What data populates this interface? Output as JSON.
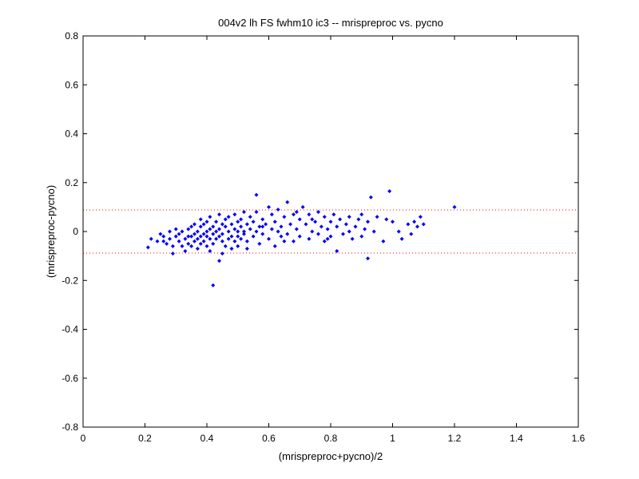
{
  "chart_data": {
    "type": "scatter",
    "title": "004v2 lh FS fwhm10 ic3 -- mrispreproc vs. pycno",
    "xlabel": "(mrispreproc+pycno)/2",
    "ylabel": "(mrispreproc-pycno)",
    "xlim": [
      0,
      1.6
    ],
    "ylim": [
      -0.8,
      0.8
    ],
    "xticks": [
      "0",
      "0.2",
      "0.4",
      "0.6",
      "0.8",
      "1",
      "1.2",
      "1.4",
      "1.6"
    ],
    "yticks": [
      "-0.8",
      "-0.6",
      "-0.4",
      "-0.2",
      "0",
      "0.2",
      "0.4",
      "0.6",
      "0.8"
    ],
    "grid": false,
    "colors": {
      "points": "#0000ff",
      "limit_lines": "#ff0000"
    },
    "reference_lines": [
      0.088,
      -0.088
    ],
    "series": [
      {
        "points": [
          [
            0.21,
            -0.065
          ],
          [
            0.22,
            -0.03
          ],
          [
            0.24,
            -0.04
          ],
          [
            0.25,
            -0.01
          ],
          [
            0.26,
            -0.02
          ],
          [
            0.27,
            -0.05
          ],
          [
            0.28,
            -0.03
          ],
          [
            0.28,
            0.0
          ],
          [
            0.29,
            -0.06
          ],
          [
            0.29,
            -0.09
          ],
          [
            0.3,
            0.01
          ],
          [
            0.3,
            -0.02
          ],
          [
            0.31,
            -0.04
          ],
          [
            0.31,
            -0.01
          ],
          [
            0.32,
            -0.06
          ],
          [
            0.32,
            0.0
          ],
          [
            0.33,
            -0.03
          ],
          [
            0.33,
            -0.08
          ],
          [
            0.34,
            0.01
          ],
          [
            0.34,
            -0.05
          ],
          [
            0.35,
            -0.02
          ],
          [
            0.35,
            0.02
          ],
          [
            0.35,
            -0.06
          ],
          [
            0.36,
            -0.01
          ],
          [
            0.36,
            -0.04
          ],
          [
            0.36,
            0.03
          ],
          [
            0.37,
            0.0
          ],
          [
            0.37,
            -0.03
          ],
          [
            0.37,
            -0.07
          ],
          [
            0.38,
            0.02
          ],
          [
            0.38,
            -0.02
          ],
          [
            0.38,
            -0.05
          ],
          [
            0.38,
            0.05
          ],
          [
            0.39,
            -0.01
          ],
          [
            0.39,
            0.03
          ],
          [
            0.39,
            -0.04
          ],
          [
            0.4,
            0.0
          ],
          [
            0.4,
            -0.06
          ],
          [
            0.4,
            0.04
          ],
          [
            0.4,
            -0.02
          ],
          [
            0.41,
            0.01
          ],
          [
            0.41,
            -0.03
          ],
          [
            0.41,
            0.06
          ],
          [
            0.41,
            -0.08
          ],
          [
            0.42,
            -0.01
          ],
          [
            0.42,
            0.02
          ],
          [
            0.42,
            -0.05
          ],
          [
            0.43,
            0.0
          ],
          [
            0.43,
            0.04
          ],
          [
            0.43,
            -0.03
          ],
          [
            0.44,
            -0.02
          ],
          [
            0.44,
            0.01
          ],
          [
            0.44,
            -0.12
          ],
          [
            0.44,
            0.07
          ],
          [
            0.45,
            -0.04
          ],
          [
            0.45,
            0.03
          ],
          [
            0.45,
            -0.01
          ],
          [
            0.46,
            0.02
          ],
          [
            0.46,
            -0.06
          ],
          [
            0.46,
            0.05
          ],
          [
            0.47,
            0.0
          ],
          [
            0.47,
            -0.03
          ],
          [
            0.47,
            0.06
          ],
          [
            0.48,
            -0.02
          ],
          [
            0.48,
            0.03
          ],
          [
            0.48,
            -0.07
          ],
          [
            0.49,
            0.01
          ],
          [
            0.49,
            -0.04
          ],
          [
            0.49,
            0.07
          ],
          [
            0.5,
            0.0
          ],
          [
            0.5,
            -0.02
          ],
          [
            0.5,
            0.04
          ],
          [
            0.5,
            -0.06
          ],
          [
            0.51,
            0.02
          ],
          [
            0.51,
            -0.03
          ],
          [
            0.51,
            0.05
          ],
          [
            0.52,
            0.0
          ],
          [
            0.52,
            -0.01
          ],
          [
            0.52,
            0.08
          ],
          [
            0.53,
            0.03
          ],
          [
            0.53,
            -0.04
          ],
          [
            0.54,
            0.01
          ],
          [
            0.54,
            0.06
          ],
          [
            0.55,
            -0.02
          ],
          [
            0.55,
            0.04
          ],
          [
            0.56,
            0.0
          ],
          [
            0.56,
            0.08
          ],
          [
            0.56,
            0.15
          ],
          [
            0.57,
            0.02
          ],
          [
            0.57,
            -0.05
          ],
          [
            0.58,
            0.05
          ],
          [
            0.58,
            -0.01
          ],
          [
            0.59,
            0.03
          ],
          [
            0.6,
            -0.03
          ],
          [
            0.6,
            0.1
          ],
          [
            0.61,
            0.01
          ],
          [
            0.62,
            0.04
          ],
          [
            0.62,
            -0.06
          ],
          [
            0.63,
            0.0
          ],
          [
            0.63,
            0.09
          ],
          [
            0.64,
            0.02
          ],
          [
            0.64,
            -0.02
          ],
          [
            0.65,
            0.06
          ],
          [
            0.66,
            -0.01
          ],
          [
            0.66,
            0.12
          ],
          [
            0.67,
            0.03
          ],
          [
            0.68,
            -0.04
          ],
          [
            0.68,
            0.07
          ],
          [
            0.69,
            0.01
          ],
          [
            0.7,
            0.05
          ],
          [
            0.7,
            -0.02
          ],
          [
            0.71,
            0.1
          ],
          [
            0.72,
            0.03
          ],
          [
            0.73,
            -0.03
          ],
          [
            0.73,
            0.07
          ],
          [
            0.74,
            0.0
          ],
          [
            0.75,
            0.04
          ],
          [
            0.76,
            -0.01
          ],
          [
            0.76,
            0.08
          ],
          [
            0.77,
            0.02
          ],
          [
            0.78,
            -0.04
          ],
          [
            0.78,
            0.06
          ],
          [
            0.79,
            0.01
          ],
          [
            0.8,
            0.04
          ],
          [
            0.8,
            -0.02
          ],
          [
            0.81,
            0.07
          ],
          [
            0.82,
            -0.08
          ],
          [
            0.82,
            0.02
          ],
          [
            0.83,
            0.05
          ],
          [
            0.84,
            -0.01
          ],
          [
            0.85,
            0.03
          ],
          [
            0.86,
            0.0
          ],
          [
            0.86,
            0.06
          ],
          [
            0.87,
            -0.03
          ],
          [
            0.88,
            0.02
          ],
          [
            0.89,
            0.05
          ],
          [
            0.9,
            -0.02
          ],
          [
            0.9,
            0.07
          ],
          [
            0.91,
            0.01
          ],
          [
            0.92,
            -0.11
          ],
          [
            0.92,
            0.04
          ],
          [
            0.93,
            0.14
          ],
          [
            0.94,
            0.0
          ],
          [
            0.95,
            0.06
          ],
          [
            0.97,
            -0.04
          ],
          [
            0.98,
            0.05
          ],
          [
            0.99,
            0.165
          ],
          [
            1.0,
            0.04
          ],
          [
            1.02,
            0.0
          ],
          [
            1.03,
            -0.03
          ],
          [
            1.05,
            0.03
          ],
          [
            1.06,
            -0.01
          ],
          [
            1.07,
            0.04
          ],
          [
            1.08,
            0.02
          ],
          [
            1.09,
            0.06
          ],
          [
            1.1,
            0.03
          ],
          [
            1.2,
            0.1
          ],
          [
            0.26,
            -0.04
          ],
          [
            0.34,
            -0.02
          ],
          [
            0.42,
            -0.22
          ],
          [
            0.45,
            -0.09
          ],
          [
            0.53,
            -0.07
          ],
          [
            0.58,
            0.02
          ],
          [
            0.61,
            0.07
          ],
          [
            0.65,
            -0.04
          ],
          [
            0.69,
            0.08
          ],
          [
            0.74,
            0.05
          ],
          [
            0.79,
            -0.03
          ]
        ]
      }
    ]
  }
}
